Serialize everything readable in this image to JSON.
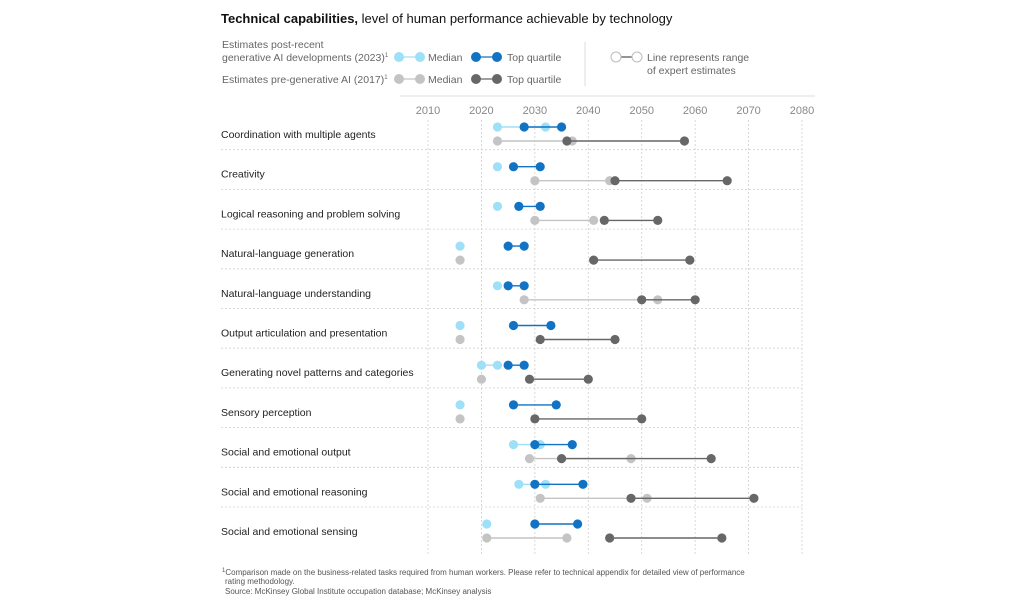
{
  "title": {
    "bold": "Technical capabilities,",
    "rest": " level of human performance achievable by technology"
  },
  "legend": {
    "post_label_line1": "Estimates post-recent",
    "post_label_line2": "generative AI developments (2023)",
    "post_sup": "1",
    "pre_label": "Estimates pre-generative AI (2017)",
    "pre_sup": "1",
    "median": "Median",
    "top_quartile": "Top quartile",
    "range_line1": "Line represents range",
    "range_line2": "of expert estimates"
  },
  "colors": {
    "post_median": "#9ee0f7",
    "post_top": "#1273c4",
    "pre_median": "#c4c4c4",
    "pre_top": "#676767"
  },
  "footnote": {
    "line1": "Comparison made on the business-related tasks required from human workers. Please refer to technical appendix for detailed view of performance",
    "line2": "rating methodology.",
    "line3": "Source: McKinsey Global Institute occupation database; McKinsey analysis",
    "sup": "1"
  },
  "chart_data": {
    "type": "dot-range",
    "title": "Technical capabilities, level of human performance achievable by technology",
    "xlim": [
      2010,
      2080
    ],
    "xticks": [
      2010,
      2020,
      2030,
      2040,
      2050,
      2060,
      2070,
      2080
    ],
    "series": [
      {
        "name": "Estimates post-recent generative AI developments (2023) - Median",
        "group": "post",
        "kind": "median"
      },
      {
        "name": "Estimates post-recent generative AI developments (2023) - Top quartile",
        "group": "post",
        "kind": "top"
      },
      {
        "name": "Estimates pre-generative AI (2017) - Median",
        "group": "pre",
        "kind": "median"
      },
      {
        "name": "Estimates pre-generative AI (2017) - Top quartile",
        "group": "pre",
        "kind": "top"
      }
    ],
    "capabilities": [
      {
        "label": "Coordination with multiple agents",
        "post_median": [
          2023,
          2032
        ],
        "post_top": [
          2028,
          2035
        ],
        "pre_median": [
          2023,
          2037
        ],
        "pre_top": [
          2036,
          2058
        ]
      },
      {
        "label": "Creativity",
        "post_median": [
          2023
        ],
        "post_top": [
          2026,
          2031
        ],
        "pre_median": [
          2030,
          2044
        ],
        "pre_top": [
          2045,
          2066
        ]
      },
      {
        "label": "Logical reasoning and problem solving",
        "post_median": [
          2023
        ],
        "post_top": [
          2027,
          2031
        ],
        "pre_median": [
          2030,
          2041
        ],
        "pre_top": [
          2043,
          2053
        ]
      },
      {
        "label": "Natural-language generation",
        "post_median": [
          2016
        ],
        "post_top": [
          2025,
          2028
        ],
        "pre_median": [
          2016
        ],
        "pre_top": [
          2041,
          2059
        ]
      },
      {
        "label": "Natural-language understanding",
        "post_median": [
          2023
        ],
        "post_top": [
          2025,
          2028
        ],
        "pre_median": [
          2028,
          2053
        ],
        "pre_top": [
          2050,
          2060
        ]
      },
      {
        "label": "Output articulation and presentation",
        "post_median": [
          2016
        ],
        "post_top": [
          2026,
          2033
        ],
        "pre_median": [
          2016
        ],
        "pre_top": [
          2031,
          2045
        ]
      },
      {
        "label": "Generating novel patterns and categories",
        "post_median": [
          2020,
          2023
        ],
        "post_top": [
          2025,
          2028
        ],
        "pre_median": [
          2020
        ],
        "pre_top": [
          2029,
          2040
        ]
      },
      {
        "label": "Sensory perception",
        "post_median": [
          2016
        ],
        "post_top": [
          2026,
          2034
        ],
        "pre_median": [
          2016
        ],
        "pre_top": [
          2030,
          2050
        ]
      },
      {
        "label": "Social and emotional output",
        "post_median": [
          2026,
          2031
        ],
        "post_top": [
          2030,
          2037
        ],
        "pre_median": [
          2029,
          2048
        ],
        "pre_top": [
          2035,
          2063
        ]
      },
      {
        "label": "Social and emotional reasoning",
        "post_median": [
          2027,
          2032
        ],
        "post_top": [
          2030,
          2039
        ],
        "pre_median": [
          2031,
          2051
        ],
        "pre_top": [
          2048,
          2071
        ]
      },
      {
        "label": "Social and emotional sensing",
        "post_median": [
          2021
        ],
        "post_top": [
          2030,
          2038
        ],
        "pre_median": [
          2021,
          2036
        ],
        "pre_top": [
          2044,
          2065
        ]
      }
    ]
  }
}
